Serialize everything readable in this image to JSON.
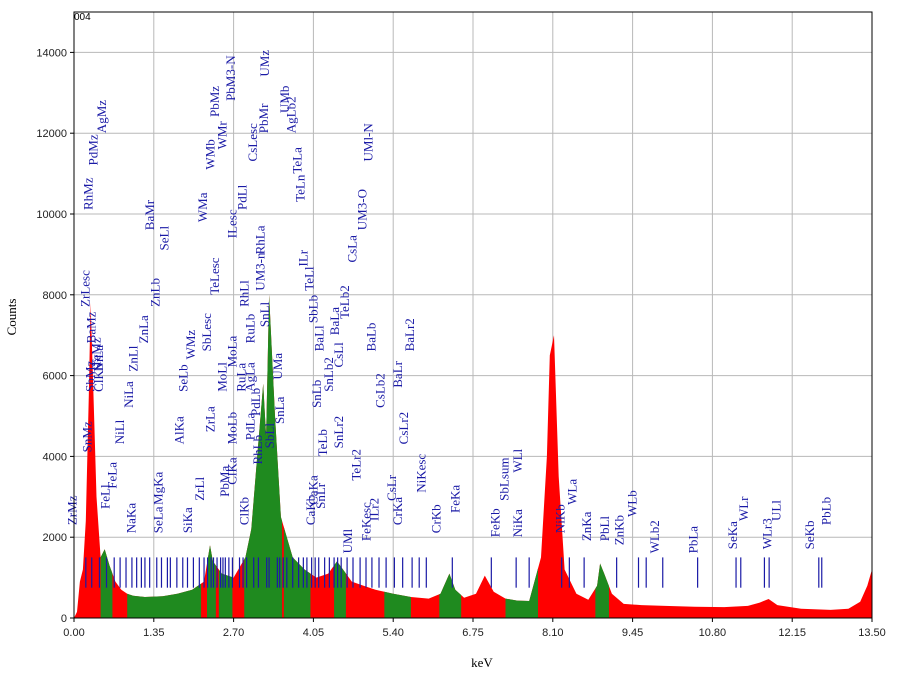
{
  "chart_data": {
    "type": "area",
    "corner_label": "004",
    "xlabel": "keV",
    "ylabel": "Counts",
    "xlim": [
      0,
      13.5
    ],
    "ylim": [
      0,
      15000
    ],
    "x_ticks": [
      "0.00",
      "1.35",
      "2.70",
      "4.05",
      "5.40",
      "6.75",
      "8.10",
      "9.45",
      "10.80",
      "12.15",
      "13.50"
    ],
    "y_ticks": [
      "0",
      "2000",
      "4000",
      "6000",
      "8000",
      "10000",
      "12000",
      "14000"
    ],
    "grid": true,
    "colors": {
      "spectrum": "#ff0000",
      "identified": "#1f8a1f",
      "markers": "#1a1aa6"
    },
    "spectrum_points": [
      [
        0.0,
        0
      ],
      [
        0.05,
        150
      ],
      [
        0.1,
        900
      ],
      [
        0.15,
        1200
      ],
      [
        0.2,
        2400
      ],
      [
        0.25,
        5500
      ],
      [
        0.28,
        7800
      ],
      [
        0.32,
        6000
      ],
      [
        0.38,
        3000
      ],
      [
        0.45,
        1500
      ],
      [
        0.52,
        1700
      ],
      [
        0.6,
        1300
      ],
      [
        0.7,
        900
      ],
      [
        0.8,
        700
      ],
      [
        0.9,
        600
      ],
      [
        1.0,
        550
      ],
      [
        1.2,
        520
      ],
      [
        1.5,
        540
      ],
      [
        1.75,
        600
      ],
      [
        2.0,
        700
      ],
      [
        2.2,
        900
      ],
      [
        2.3,
        1800
      ],
      [
        2.35,
        1400
      ],
      [
        2.5,
        1100
      ],
      [
        2.7,
        1000
      ],
      [
        2.9,
        1500
      ],
      [
        3.0,
        2200
      ],
      [
        3.1,
        4000
      ],
      [
        3.2,
        5800
      ],
      [
        3.25,
        4500
      ],
      [
        3.3,
        8000
      ],
      [
        3.4,
        5000
      ],
      [
        3.5,
        2500
      ],
      [
        3.7,
        1500
      ],
      [
        3.9,
        1200
      ],
      [
        4.1,
        1000
      ],
      [
        4.3,
        1100
      ],
      [
        4.45,
        1400
      ],
      [
        4.55,
        1200
      ],
      [
        4.7,
        900
      ],
      [
        4.9,
        800
      ],
      [
        5.1,
        700
      ],
      [
        5.4,
        600
      ],
      [
        5.7,
        520
      ],
      [
        6.0,
        480
      ],
      [
        6.2,
        600
      ],
      [
        6.35,
        1100
      ],
      [
        6.45,
        700
      ],
      [
        6.6,
        500
      ],
      [
        6.8,
        600
      ],
      [
        6.95,
        1050
      ],
      [
        7.1,
        650
      ],
      [
        7.3,
        480
      ],
      [
        7.5,
        430
      ],
      [
        7.7,
        420
      ],
      [
        7.9,
        1500
      ],
      [
        8.0,
        4000
      ],
      [
        8.05,
        6500
      ],
      [
        8.12,
        7000
      ],
      [
        8.2,
        3500
      ],
      [
        8.3,
        1200
      ],
      [
        8.5,
        600
      ],
      [
        8.7,
        450
      ],
      [
        8.85,
        800
      ],
      [
        8.9,
        1350
      ],
      [
        8.97,
        1100
      ],
      [
        9.1,
        600
      ],
      [
        9.3,
        350
      ],
      [
        9.6,
        320
      ],
      [
        10.0,
        300
      ],
      [
        10.5,
        280
      ],
      [
        11.0,
        270
      ],
      [
        11.4,
        300
      ],
      [
        11.6,
        380
      ],
      [
        11.75,
        470
      ],
      [
        11.9,
        320
      ],
      [
        12.3,
        230
      ],
      [
        12.8,
        200
      ],
      [
        13.1,
        230
      ],
      [
        13.3,
        400
      ],
      [
        13.42,
        800
      ],
      [
        13.5,
        1200
      ]
    ],
    "identified_regions": [
      [
        0.45,
        0.65
      ],
      [
        0.9,
        2.15
      ],
      [
        2.25,
        2.4
      ],
      [
        2.45,
        2.68
      ],
      [
        2.88,
        3.52
      ],
      [
        3.55,
        4.0
      ],
      [
        4.4,
        4.6
      ],
      [
        5.25,
        5.7
      ],
      [
        6.18,
        6.55
      ],
      [
        7.3,
        7.85
      ],
      [
        8.82,
        9.05
      ]
    ],
    "peak_labels": [
      {
        "text": "ZrMz",
        "x": 0.04,
        "y": 2300
      },
      {
        "text": "ZrLesc",
        "x": 0.26,
        "y": 7700
      },
      {
        "text": "RhMz",
        "x": 0.31,
        "y": 10100
      },
      {
        "text": "PdMz",
        "x": 0.4,
        "y": 11200
      },
      {
        "text": "AgMz",
        "x": 0.54,
        "y": 12000
      },
      {
        "text": "BaMz",
        "x": 0.36,
        "y": 6800
      },
      {
        "text": "SbMz",
        "x": 0.35,
        "y": 5600
      },
      {
        "text": "SnMz",
        "x": 0.3,
        "y": 4100
      },
      {
        "text": "TeMz",
        "x": 0.45,
        "y": 6200
      },
      {
        "text": "NiLa",
        "x": 0.49,
        "y": 6100
      },
      {
        "text": "ClKb",
        "x": 0.49,
        "y": 5600
      },
      {
        "text": "FeLl",
        "x": 0.6,
        "y": 2700
      },
      {
        "text": "FeLa",
        "x": 0.72,
        "y": 3200
      },
      {
        "text": "NiLl",
        "x": 0.85,
        "y": 4300
      },
      {
        "text": "NiLa",
        "x": 1.0,
        "y": 5200
      },
      {
        "text": "ZnLl",
        "x": 1.08,
        "y": 6100
      },
      {
        "text": "ZnLa",
        "x": 1.25,
        "y": 6800
      },
      {
        "text": "ZnLb",
        "x": 1.45,
        "y": 7700
      },
      {
        "text": "NaKa",
        "x": 1.04,
        "y": 2100
      },
      {
        "text": "BaMr",
        "x": 1.35,
        "y": 9600
      },
      {
        "text": "SeLl",
        "x": 1.6,
        "y": 9100
      },
      {
        "text": "MgKa",
        "x": 1.5,
        "y": 2800
      },
      {
        "text": "SeLa",
        "x": 1.5,
        "y": 2100
      },
      {
        "text": "AlKa",
        "x": 1.85,
        "y": 4300
      },
      {
        "text": "SeLb",
        "x": 1.92,
        "y": 5600
      },
      {
        "text": "WMz",
        "x": 2.05,
        "y": 6400
      },
      {
        "text": "SiKa",
        "x": 2.0,
        "y": 2100
      },
      {
        "text": "ZrLl",
        "x": 2.2,
        "y": 2900
      },
      {
        "text": "WMa",
        "x": 2.25,
        "y": 9800
      },
      {
        "text": "WMb",
        "x": 2.38,
        "y": 11100
      },
      {
        "text": "PbMz",
        "x": 2.45,
        "y": 12400
      },
      {
        "text": "WMr",
        "x": 2.58,
        "y": 11600
      },
      {
        "text": "PbM3-N",
        "x": 2.72,
        "y": 12800
      },
      {
        "text": "TeLesc",
        "x": 2.45,
        "y": 8000
      },
      {
        "text": "SbLesc",
        "x": 2.32,
        "y": 6600
      },
      {
        "text": "ZrLa",
        "x": 2.38,
        "y": 4600
      },
      {
        "text": "MoLl",
        "x": 2.58,
        "y": 5600
      },
      {
        "text": "PbMa",
        "x": 2.62,
        "y": 3000
      },
      {
        "text": "MoLb",
        "x": 2.75,
        "y": 4300
      },
      {
        "text": "MoLa",
        "x": 2.75,
        "y": 6200
      },
      {
        "text": "ILesc",
        "x": 2.75,
        "y": 9400
      },
      {
        "text": "PdLl",
        "x": 2.92,
        "y": 10100
      },
      {
        "text": "CsLesc",
        "x": 3.1,
        "y": 11300
      },
      {
        "text": "PbMr",
        "x": 3.28,
        "y": 12000
      },
      {
        "text": "UMz",
        "x": 3.3,
        "y": 13400
      },
      {
        "text": "RhLl",
        "x": 2.95,
        "y": 7700
      },
      {
        "text": "RuLa",
        "x": 2.9,
        "y": 5600
      },
      {
        "text": "RuLb",
        "x": 3.05,
        "y": 6800
      },
      {
        "text": "RhLa",
        "x": 3.22,
        "y": 9000
      },
      {
        "text": "UM3-n",
        "x": 3.22,
        "y": 8100
      },
      {
        "text": "SnLl",
        "x": 3.3,
        "y": 7200
      },
      {
        "text": "AgLa",
        "x": 3.05,
        "y": 5600
      },
      {
        "text": "PdLb",
        "x": 3.15,
        "y": 5000
      },
      {
        "text": "PdLa",
        "x": 3.05,
        "y": 4400
      },
      {
        "text": "RhLb",
        "x": 3.18,
        "y": 3800
      },
      {
        "text": "ClKa",
        "x": 2.75,
        "y": 3300
      },
      {
        "text": "ClKb",
        "x": 2.95,
        "y": 2300
      },
      {
        "text": "SbLl",
        "x": 3.38,
        "y": 4200
      },
      {
        "text": "SnLa",
        "x": 3.55,
        "y": 4800
      },
      {
        "text": "UMa",
        "x": 3.52,
        "y": 5900
      },
      {
        "text": "UMb",
        "x": 3.64,
        "y": 12500
      },
      {
        "text": "AgLb2",
        "x": 3.75,
        "y": 12000
      },
      {
        "text": "TeLa",
        "x": 3.85,
        "y": 11000
      },
      {
        "text": "TeLn",
        "x": 3.9,
        "y": 10300
      },
      {
        "text": "ILr",
        "x": 3.95,
        "y": 8700
      },
      {
        "text": "TeLl",
        "x": 4.05,
        "y": 8100
      },
      {
        "text": "SbLb",
        "x": 4.12,
        "y": 7300
      },
      {
        "text": "BaLl",
        "x": 4.22,
        "y": 6600
      },
      {
        "text": "SnLb2",
        "x": 4.38,
        "y": 5600
      },
      {
        "text": "CsLl",
        "x": 4.55,
        "y": 6200
      },
      {
        "text": "BaLa",
        "x": 4.48,
        "y": 7000
      },
      {
        "text": "TeLb2",
        "x": 4.65,
        "y": 7400
      },
      {
        "text": "CsLa",
        "x": 4.78,
        "y": 8800
      },
      {
        "text": "UM3-O",
        "x": 4.95,
        "y": 9600
      },
      {
        "text": "UMl-N",
        "x": 5.05,
        "y": 11300
      },
      {
        "text": "BaLb",
        "x": 5.1,
        "y": 6600
      },
      {
        "text": "CsLb2",
        "x": 5.25,
        "y": 5200
      },
      {
        "text": "BaLr",
        "x": 5.55,
        "y": 5700
      },
      {
        "text": "BaLr2",
        "x": 5.75,
        "y": 6600
      },
      {
        "text": "CsLr2",
        "x": 5.65,
        "y": 4300
      },
      {
        "text": "NiKesc",
        "x": 5.95,
        "y": 3100
      },
      {
        "text": "CrKb",
        "x": 6.2,
        "y": 2100
      },
      {
        "text": "CrKa",
        "x": 5.55,
        "y": 2300
      },
      {
        "text": "CsLr",
        "x": 5.45,
        "y": 2900
      },
      {
        "text": "ILr2",
        "x": 5.15,
        "y": 2400
      },
      {
        "text": "FeKesc",
        "x": 5.02,
        "y": 1900
      },
      {
        "text": "TeLr2",
        "x": 4.85,
        "y": 3400
      },
      {
        "text": "SnLr2",
        "x": 4.55,
        "y": 4200
      },
      {
        "text": "SnLr",
        "x": 4.25,
        "y": 2700
      },
      {
        "text": "CaKb",
        "x": 4.08,
        "y": 2300
      },
      {
        "text": "CaKa",
        "x": 4.12,
        "y": 2800
      },
      {
        "text": "TeLb",
        "x": 4.28,
        "y": 4000
      },
      {
        "text": "SnLb",
        "x": 4.18,
        "y": 5200
      },
      {
        "text": "UMl",
        "x": 4.7,
        "y": 1600
      },
      {
        "text": "FeKa",
        "x": 6.52,
        "y": 2600
      },
      {
        "text": "FeKb",
        "x": 7.2,
        "y": 2000
      },
      {
        "text": "SbLsum",
        "x": 7.35,
        "y": 2900
      },
      {
        "text": "NiKa",
        "x": 7.58,
        "y": 2000
      },
      {
        "text": "WLl",
        "x": 7.58,
        "y": 3600
      },
      {
        "text": "NiKb",
        "x": 8.3,
        "y": 2100
      },
      {
        "text": "WLa",
        "x": 8.5,
        "y": 2800
      },
      {
        "text": "ZnKa",
        "x": 8.75,
        "y": 1900
      },
      {
        "text": "PbLl",
        "x": 9.05,
        "y": 1900
      },
      {
        "text": "ZnKb",
        "x": 9.3,
        "y": 1800
      },
      {
        "text": "WLb",
        "x": 9.52,
        "y": 2500
      },
      {
        "text": "WLb2",
        "x": 9.9,
        "y": 1600
      },
      {
        "text": "PbLa",
        "x": 10.55,
        "y": 1600
      },
      {
        "text": "SeKa",
        "x": 11.22,
        "y": 1700
      },
      {
        "text": "WLr",
        "x": 11.4,
        "y": 2400
      },
      {
        "text": "WLr3",
        "x": 11.8,
        "y": 1700
      },
      {
        "text": "ULl",
        "x": 11.95,
        "y": 2400
      },
      {
        "text": "SeKb",
        "x": 12.52,
        "y": 1700
      },
      {
        "text": "PbLb",
        "x": 12.8,
        "y": 2300
      }
    ],
    "marker_lines": [
      0.2,
      0.3,
      0.43,
      0.55,
      0.68,
      0.78,
      0.88,
      0.98,
      1.06,
      1.14,
      1.2,
      1.28,
      1.4,
      1.48,
      1.58,
      1.63,
      1.74,
      1.84,
      1.92,
      2.02,
      2.12,
      2.2,
      2.26,
      2.32,
      2.36,
      2.42,
      2.48,
      2.52,
      2.56,
      2.62,
      2.68,
      2.8,
      2.86,
      2.92,
      3.04,
      3.12,
      3.26,
      3.3,
      3.44,
      3.48,
      3.54,
      3.6,
      3.7,
      3.8,
      3.88,
      3.94,
      4.02,
      4.08,
      4.14,
      4.24,
      4.32,
      4.4,
      4.46,
      4.52,
      4.62,
      4.72,
      4.84,
      4.94,
      5.04,
      5.16,
      5.28,
      5.42,
      5.56,
      5.72,
      5.84,
      5.96,
      6.4,
      7.06,
      7.48,
      7.7,
      8.25,
      8.38,
      8.63,
      9.18,
      9.55,
      9.68,
      9.96,
      10.55,
      11.2,
      11.28,
      11.68,
      11.76,
      12.6,
      12.65
    ]
  }
}
